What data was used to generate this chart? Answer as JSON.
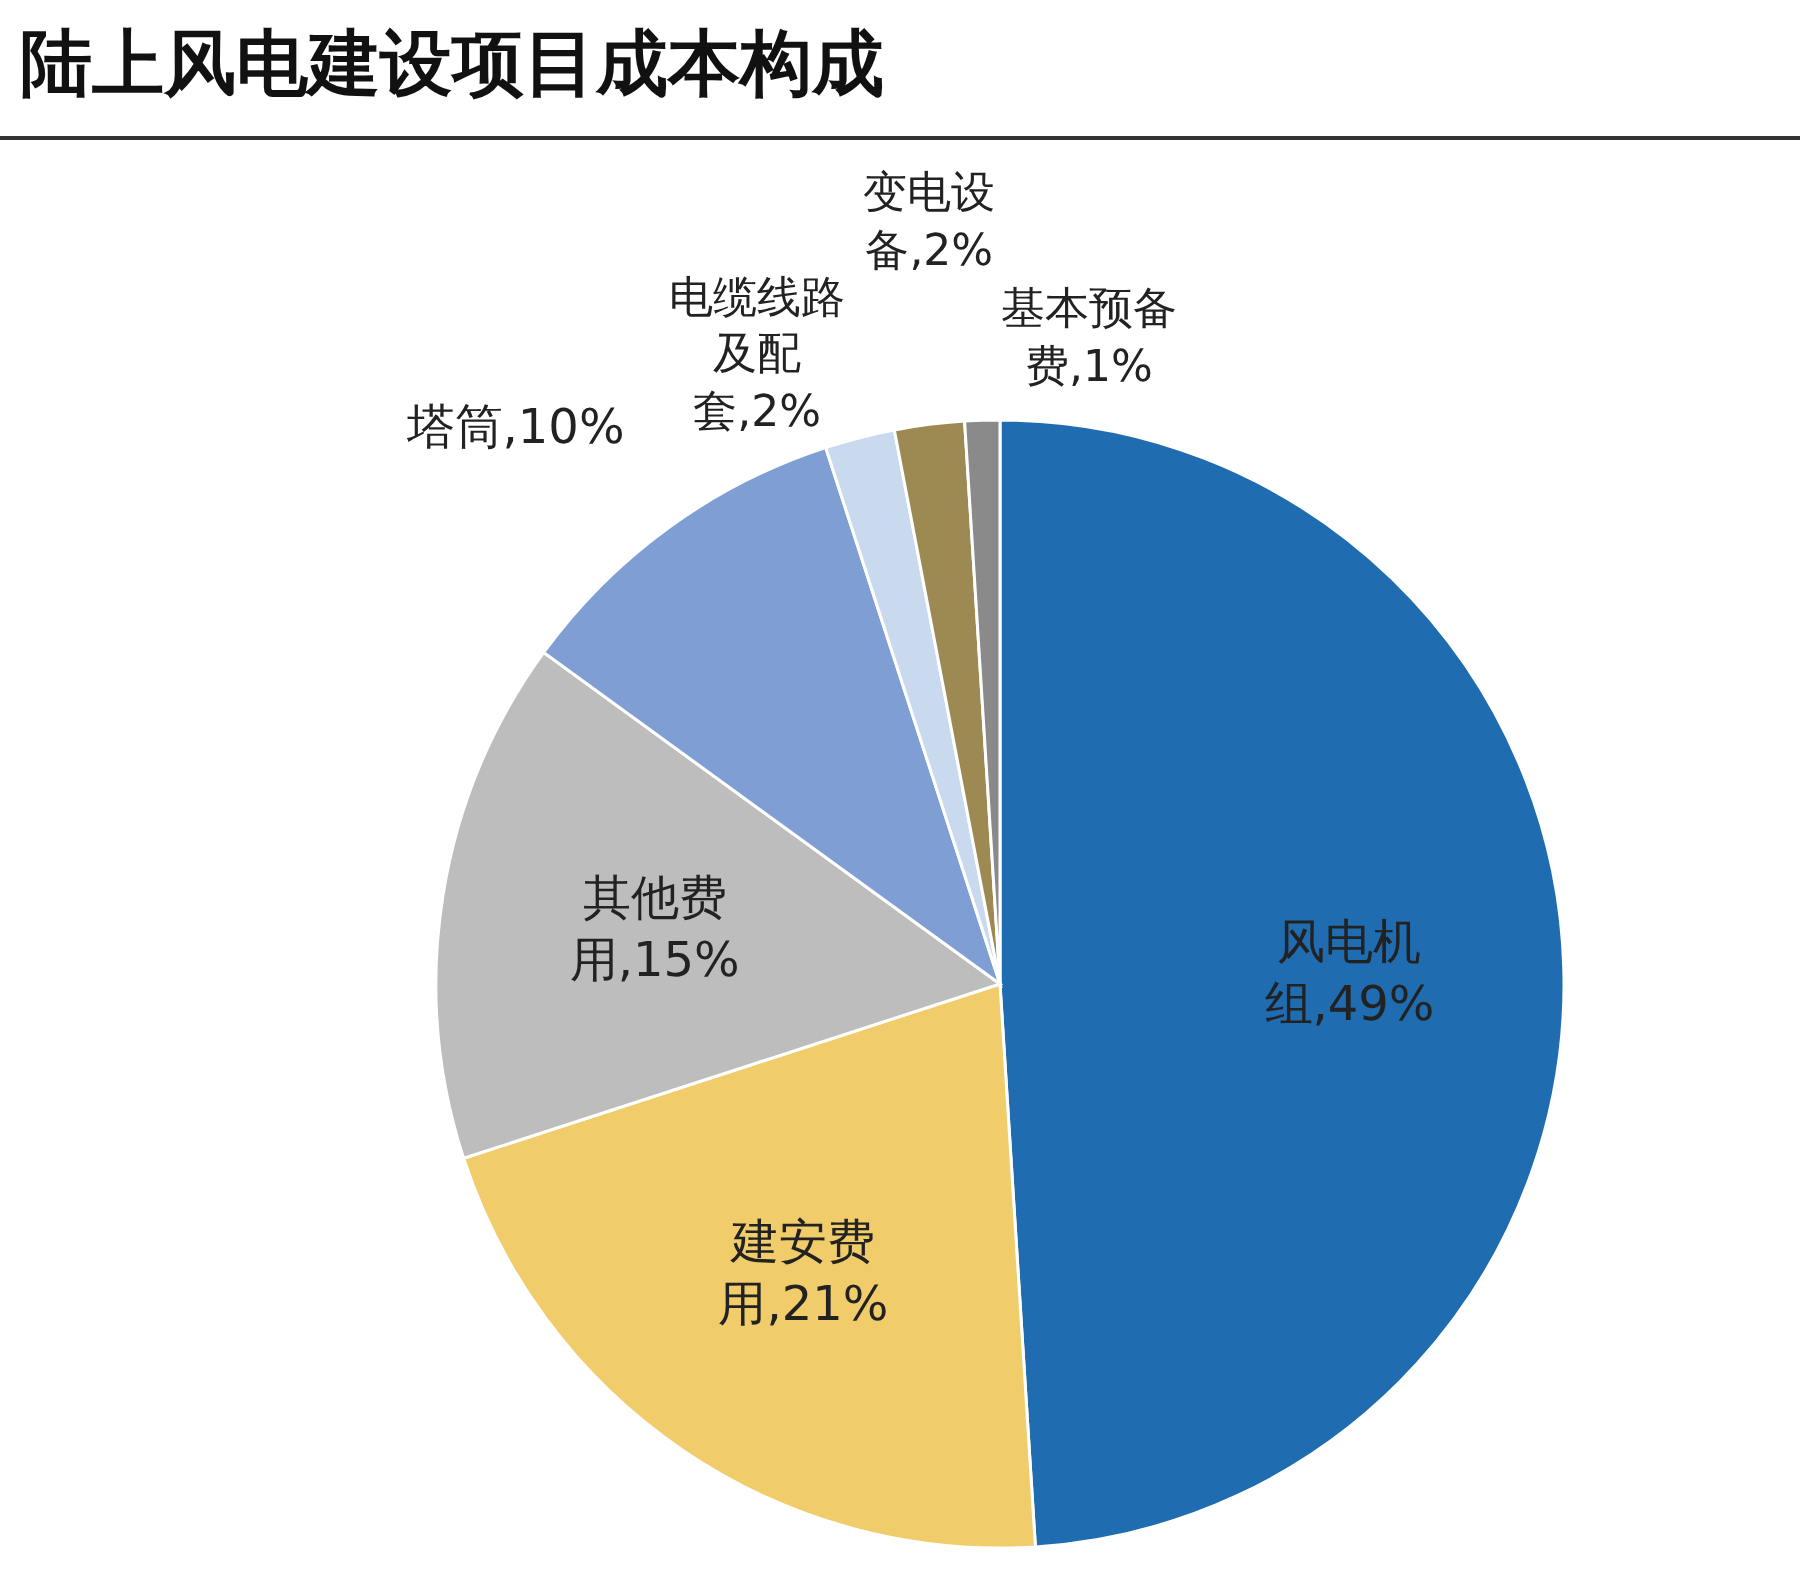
{
  "chart_data": {
    "type": "pie",
    "title": "陆上风电建设项目成本构成",
    "categories": [
      "风电机组",
      "建安费用",
      "其他费用",
      "塔筒",
      "电缆线路及配套",
      "变电设备",
      "基本预备费"
    ],
    "values": [
      49,
      21,
      15,
      10,
      2,
      2,
      1
    ],
    "colors": [
      "#1f6cb0",
      "#f0cc6a",
      "#bdbdbd",
      "#7f9fd4",
      "#c9d9ee",
      "#9c8a52",
      "#8a8a8a"
    ],
    "value_labels": [
      "49%",
      "21%",
      "15%",
      "10%",
      "2%",
      "2%",
      "1%"
    ]
  }
}
